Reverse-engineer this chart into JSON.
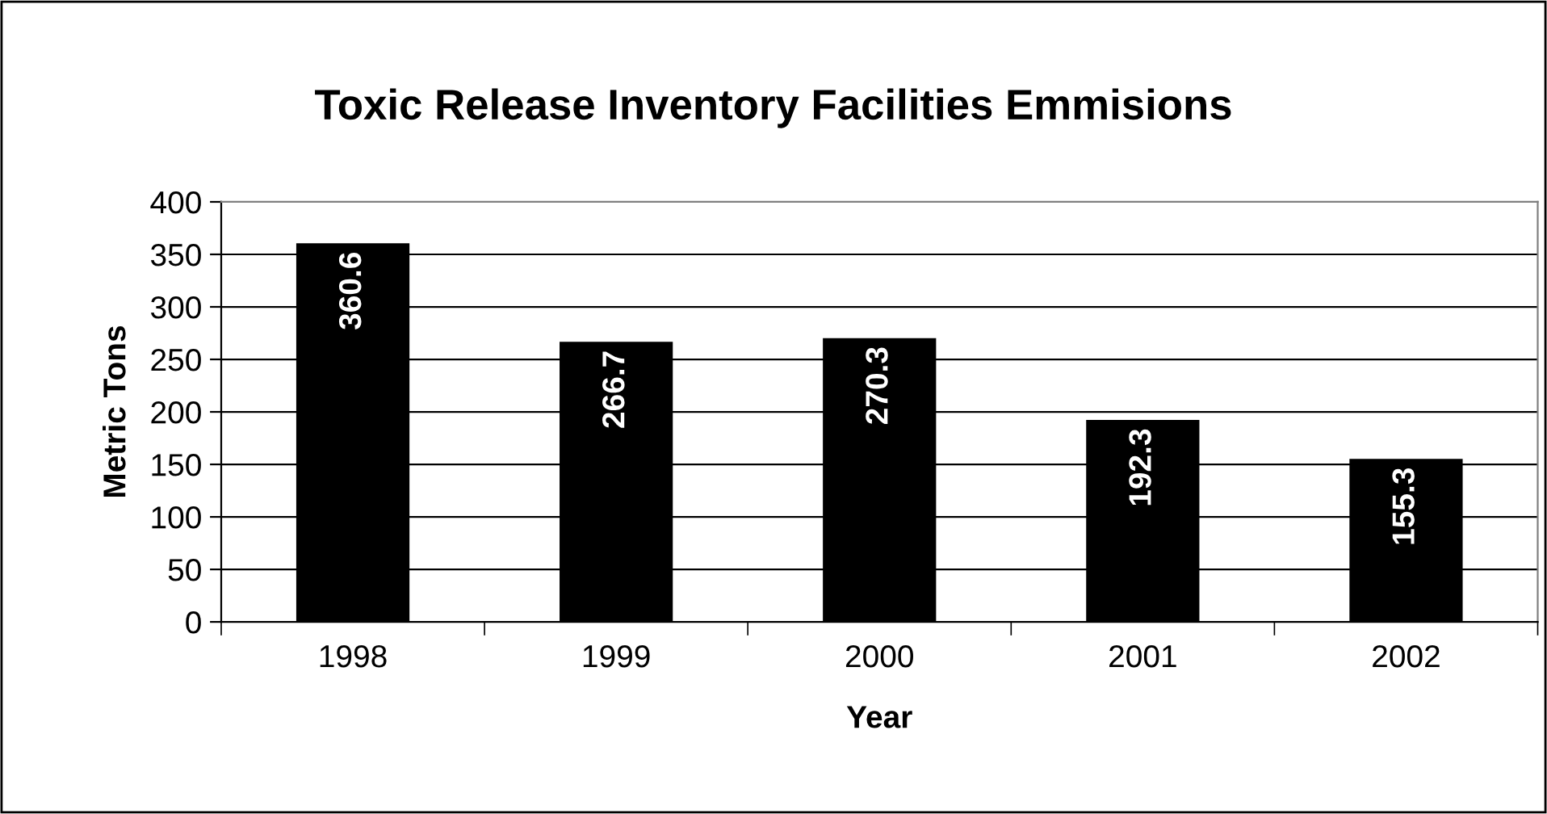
{
  "chart_data": {
    "type": "bar",
    "title": "Toxic Release Inventory Facilities Emmisions",
    "xlabel": "Year",
    "ylabel": "Metric Tons",
    "categories": [
      "1998",
      "1999",
      "2000",
      "2001",
      "2002"
    ],
    "values": [
      360.6,
      266.7,
      270.3,
      192.3,
      155.3
    ],
    "color": "#000000",
    "ylim": [
      0,
      400
    ],
    "yticks": [
      0,
      50,
      100,
      150,
      200,
      250,
      300,
      350,
      400
    ],
    "grid": "y",
    "data_labels": true
  }
}
